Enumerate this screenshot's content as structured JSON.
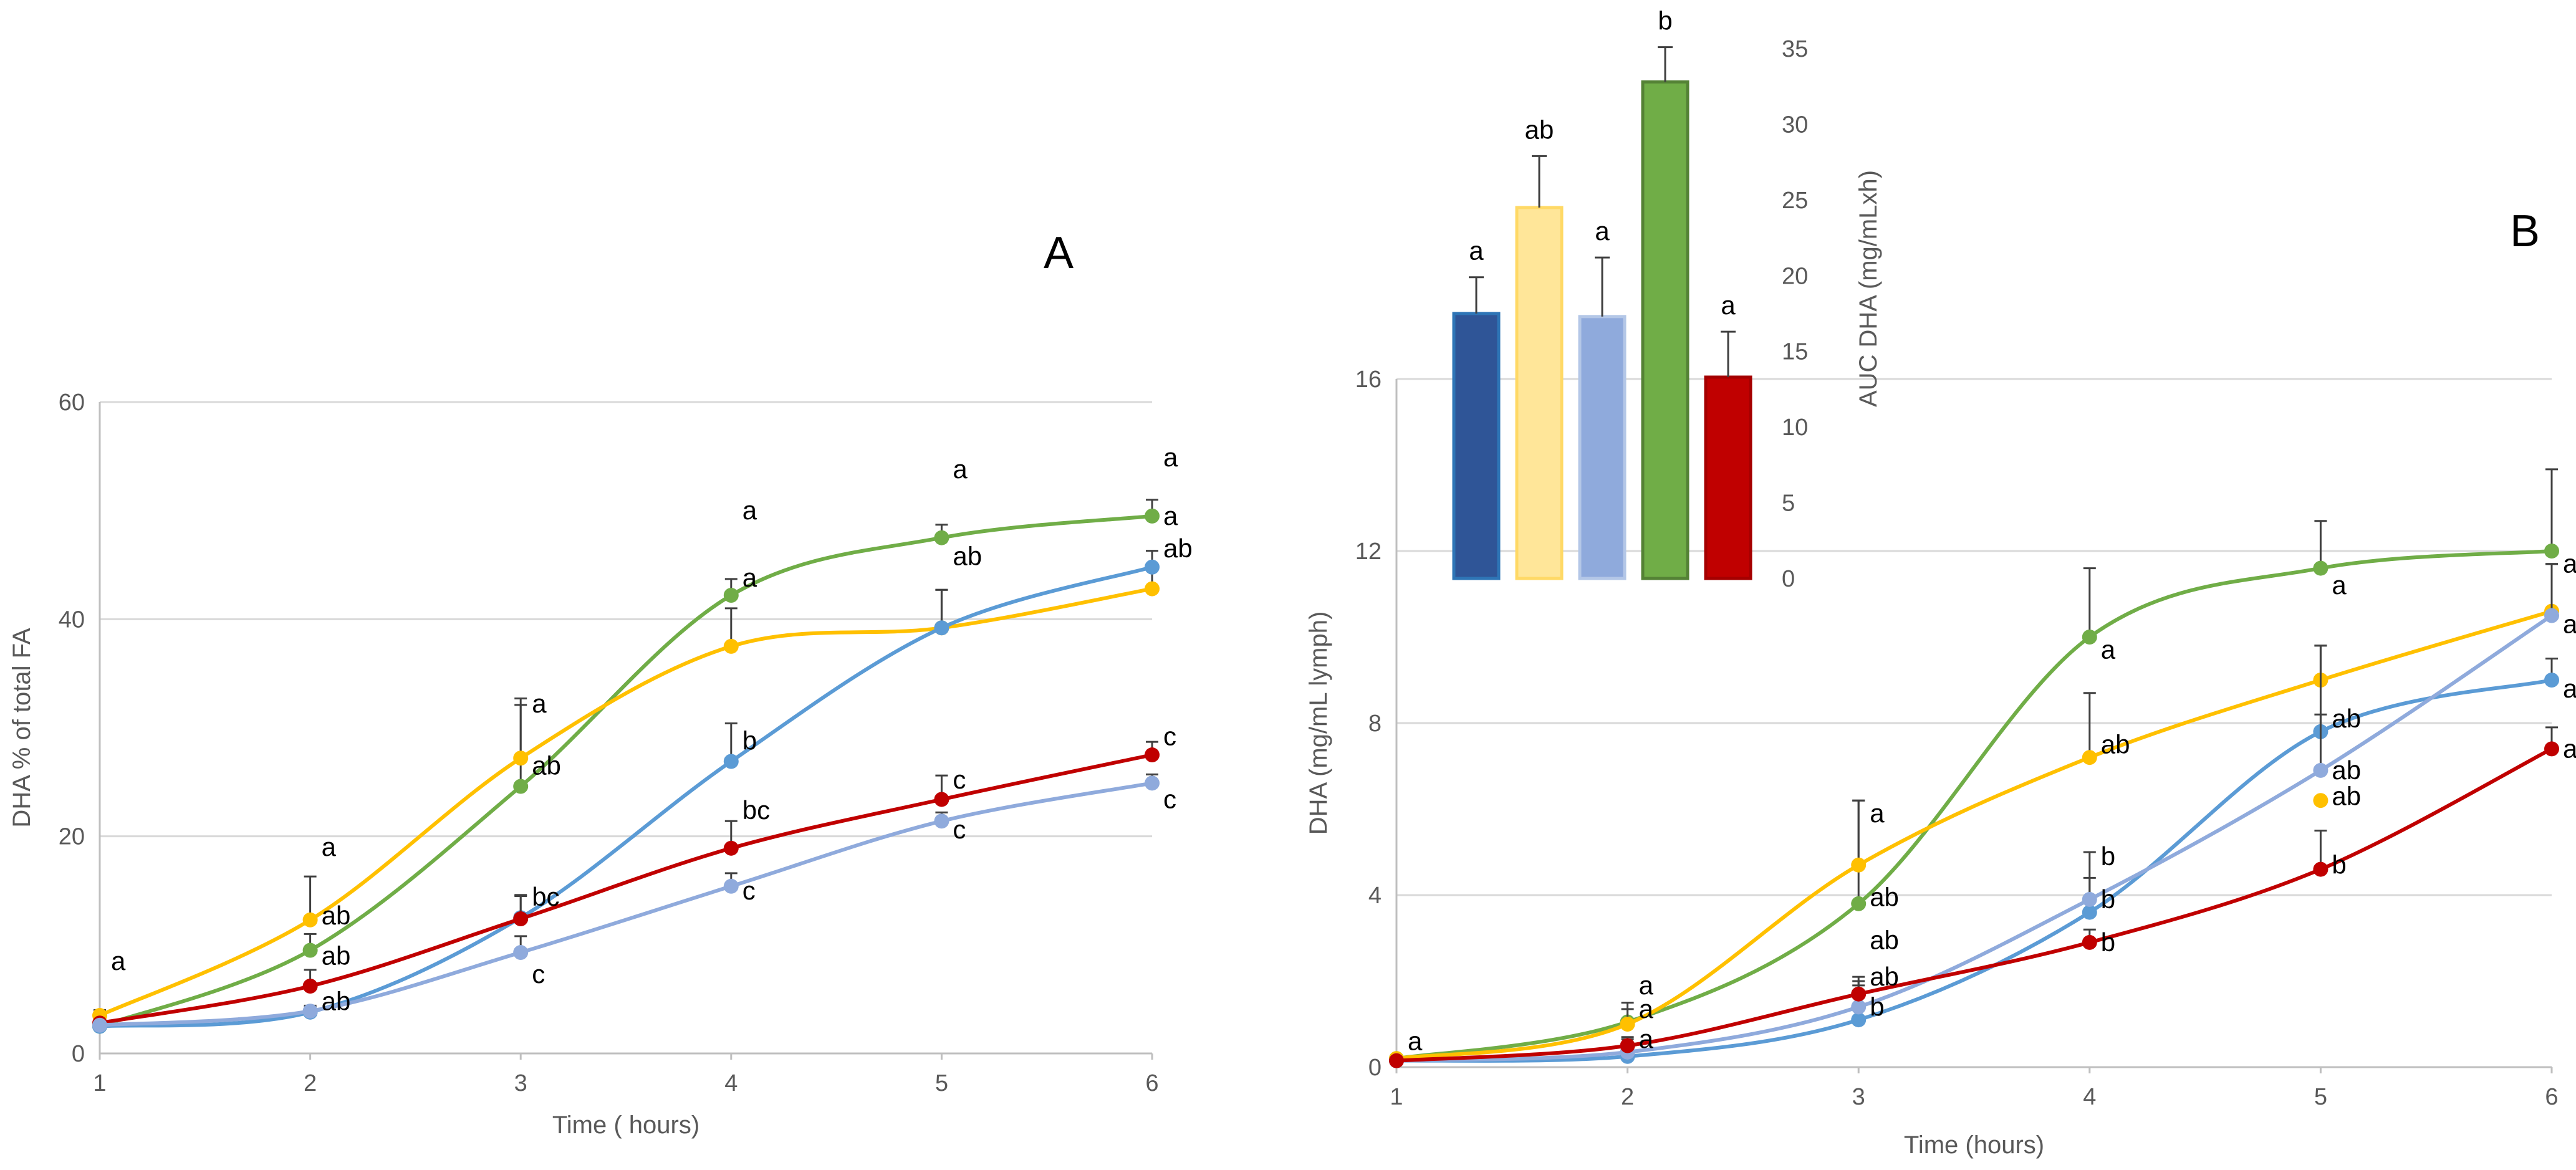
{
  "chart_data": [
    {
      "panel": "A",
      "type": "line",
      "title": "",
      "panel_label": "A",
      "xlabel": "Time ( hours)",
      "ylabel": "DHA % of total FA",
      "x": [
        1,
        2,
        3,
        4,
        5,
        6
      ],
      "xticks": [
        "1",
        "2",
        "3",
        "4",
        "5",
        "6"
      ],
      "yticks": [
        "0",
        "20",
        "40",
        "60"
      ],
      "xlim": [
        1,
        6
      ],
      "ylim": [
        0,
        60
      ],
      "grid": true,
      "series": [
        {
          "name": "green",
          "color": "#70ad47",
          "values": [
            2.5,
            9.5,
            24.6,
            42.2,
            47.5,
            49.5
          ],
          "errors": [
            0.5,
            1.5,
            7.5,
            1.5,
            1.2,
            1.5
          ]
        },
        {
          "name": "yellow",
          "color": "#ffc000",
          "values": [
            3.5,
            12.3,
            27.2,
            37.5,
            39.2,
            42.8
          ],
          "errors": [
            0.5,
            4.0,
            5.5,
            3.5,
            3.5,
            2.0
          ]
        },
        {
          "name": "blue",
          "color": "#5b9bd5",
          "values": [
            2.5,
            3.8,
            12.5,
            26.9,
            39.2,
            44.8
          ],
          "errors": [
            0.3,
            0.5,
            2.0,
            3.5,
            3.5,
            1.5
          ]
        },
        {
          "name": "red",
          "color": "#c00000",
          "values": [
            2.8,
            6.2,
            12.4,
            18.9,
            23.4,
            27.5
          ],
          "errors": [
            0.3,
            1.5,
            2.2,
            2.5,
            2.2,
            1.2
          ]
        },
        {
          "name": "light-blue",
          "color": "#8faadc",
          "values": [
            2.6,
            3.9,
            9.3,
            15.4,
            21.4,
            24.9
          ],
          "errors": [
            0.3,
            0.5,
            1.5,
            1.2,
            0.8,
            0.8
          ]
        }
      ],
      "annotations": [
        {
          "text": "a",
          "x": 1,
          "y": 8.5
        },
        {
          "text": "a",
          "x": 2,
          "y": 19.0
        },
        {
          "text": "ab",
          "x": 2,
          "y": 12.7
        },
        {
          "text": "ab",
          "x": 2,
          "y": 9.0
        },
        {
          "text": "ab",
          "x": 2,
          "y": 4.8
        },
        {
          "text": "a",
          "x": 3,
          "y": 32.2
        },
        {
          "text": "ab",
          "x": 3,
          "y": 26.5
        },
        {
          "text": "bc",
          "x": 3,
          "y": 14.4
        },
        {
          "text": "c",
          "x": 3,
          "y": 7.3
        },
        {
          "text": "a",
          "x": 4,
          "y": 50.0
        },
        {
          "text": "a",
          "x": 4,
          "y": 43.8
        },
        {
          "text": "b",
          "x": 4,
          "y": 28.8
        },
        {
          "text": "bc",
          "x": 4,
          "y": 22.4
        },
        {
          "text": "c",
          "x": 4,
          "y": 15.0
        },
        {
          "text": "a",
          "x": 5,
          "y": 53.8
        },
        {
          "text": "ab",
          "x": 5,
          "y": 45.8
        },
        {
          "text": "c",
          "x": 5,
          "y": 25.2
        },
        {
          "text": "c",
          "x": 5,
          "y": 20.6
        },
        {
          "text": "a",
          "x": 6,
          "y": 54.9
        },
        {
          "text": "a",
          "x": 6,
          "y": 49.5
        },
        {
          "text": "ab",
          "x": 6,
          "y": 46.5
        },
        {
          "text": "c",
          "x": 6,
          "y": 29.2
        },
        {
          "text": "c",
          "x": 6,
          "y": 23.4
        }
      ]
    },
    {
      "panel": "B",
      "type": "line",
      "title": "",
      "panel_label": "B",
      "xlabel": "Time (hours)",
      "ylabel": "DHA (mg/mL lymph)",
      "x": [
        1,
        2,
        3,
        4,
        5,
        6
      ],
      "xticks": [
        "1",
        "2",
        "3",
        "4",
        "5",
        "6"
      ],
      "yticks": [
        "0",
        "4",
        "8",
        "12",
        "16"
      ],
      "xlim": [
        1,
        6
      ],
      "ylim": [
        0,
        16
      ],
      "grid": true,
      "series": [
        {
          "name": "green",
          "color": "#70ad47",
          "values": [
            0.2,
            1.05,
            3.8,
            10.0,
            11.6,
            12.0
          ],
          "errors": [
            0.05,
            0.3,
            2.4,
            1.6,
            1.1,
            1.9
          ]
        },
        {
          "name": "yellow",
          "color": "#ffc000",
          "values": [
            0.2,
            1.0,
            4.7,
            7.2,
            9.0,
            10.6
          ],
          "errors": [
            0.05,
            0.5,
            1.5,
            1.5,
            0.8,
            1.1
          ]
        },
        {
          "name": "blue",
          "color": "#5b9bd5",
          "values": [
            0.15,
            0.25,
            1.1,
            3.6,
            7.8,
            9.0
          ],
          "errors": [
            0.05,
            0.3,
            0.8,
            1.4,
            2.0,
            0.5
          ]
        },
        {
          "name": "light-blue",
          "color": "#8faadc",
          "values": [
            0.15,
            0.35,
            1.4,
            3.9,
            6.9,
            10.5
          ],
          "errors": [
            0.05,
            0.3,
            0.6,
            0.5,
            1.3,
            1.2
          ]
        },
        {
          "name": "red",
          "color": "#c00000",
          "values": [
            0.15,
            0.5,
            1.7,
            2.9,
            4.6,
            7.4
          ],
          "errors": [
            0.05,
            0.2,
            0.4,
            0.3,
            0.9,
            0.5
          ]
        },
        {
          "name": "yellow-point",
          "color": "#ffc000",
          "points": [
            {
              "x": 5,
              "y": 6.2
            }
          ]
        }
      ],
      "annotations": [
        {
          "text": "a",
          "x": 1,
          "y": 0.6
        },
        {
          "text": "a",
          "x": 2,
          "y": 1.9
        },
        {
          "text": "a",
          "x": 2,
          "y": 1.35
        },
        {
          "text": "a",
          "x": 2,
          "y": 0.65
        },
        {
          "text": "a",
          "x": 3,
          "y": 5.9
        },
        {
          "text": "ab",
          "x": 3,
          "y": 3.95
        },
        {
          "text": "ab",
          "x": 3,
          "y": 2.95
        },
        {
          "text": "ab",
          "x": 3,
          "y": 2.1
        },
        {
          "text": "b",
          "x": 3,
          "y": 1.4
        },
        {
          "text": "a",
          "x": 4,
          "y": 9.7
        },
        {
          "text": "ab",
          "x": 4,
          "y": 7.5
        },
        {
          "text": "b",
          "x": 4,
          "y": 4.9
        },
        {
          "text": "b",
          "x": 4,
          "y": 3.9
        },
        {
          "text": "b",
          "x": 4,
          "y": 2.9
        },
        {
          "text": "a",
          "x": 5,
          "y": 11.2
        },
        {
          "text": "ab",
          "x": 5,
          "y": 8.1
        },
        {
          "text": "ab",
          "x": 5,
          "y": 6.9
        },
        {
          "text": "ab",
          "x": 5,
          "y": 6.3
        },
        {
          "text": "b",
          "x": 5,
          "y": 4.7
        },
        {
          "text": "a",
          "x": 6,
          "y": 11.7
        },
        {
          "text": "a",
          "x": 6,
          "y": 10.3
        },
        {
          "text": "a",
          "x": 6,
          "y": 8.8
        },
        {
          "text": "a",
          "x": 6,
          "y": 7.4
        }
      ]
    },
    {
      "panel": "B-inset",
      "type": "bar",
      "title": "",
      "xlabel": "",
      "ylabel": "AUC DHA (mg/mLxh)",
      "yticks": [
        "0",
        "5",
        "10",
        "15",
        "20",
        "25",
        "30",
        "35"
      ],
      "ylim": [
        0,
        35
      ],
      "grid": false,
      "categories": [
        "blue",
        "yellow",
        "light-blue",
        "green",
        "red"
      ],
      "values": [
        17.5,
        24.5,
        17.3,
        32.8,
        13.3
      ],
      "errors": [
        2.4,
        3.4,
        3.9,
        2.3,
        3.0
      ],
      "colors": [
        "#2f5597",
        "#ffe699",
        "#8faadc",
        "#70ad47",
        "#c00000"
      ],
      "edge_colors": [
        "#2e75b6",
        "#ffd966",
        "#b4c7e7",
        "#548235",
        "#a50000"
      ],
      "labels": [
        "a",
        "ab",
        "a",
        "b",
        "a"
      ]
    }
  ]
}
